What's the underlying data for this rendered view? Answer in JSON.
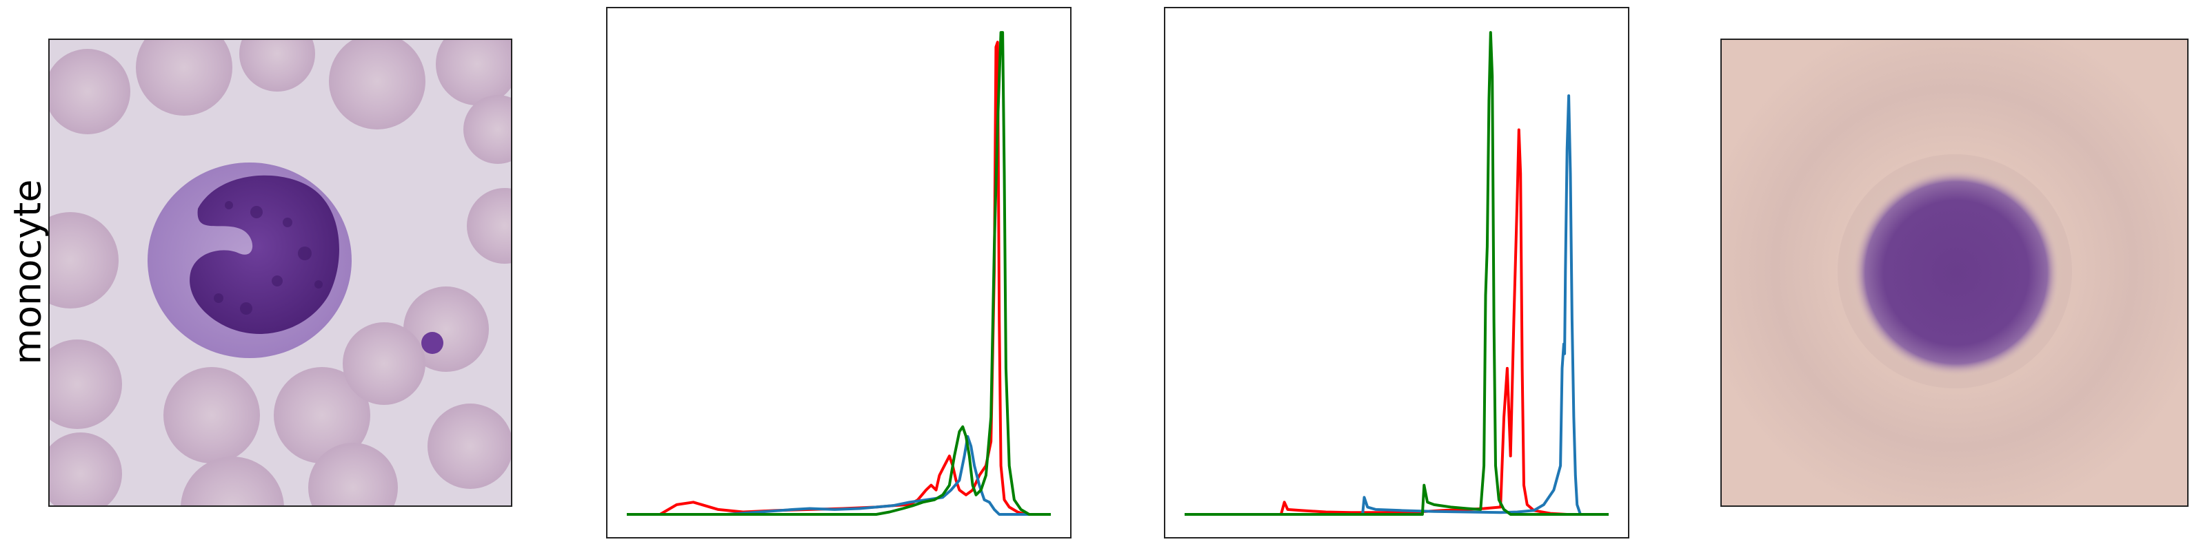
{
  "row_label": "monocyte",
  "images": {
    "micrograph": {
      "icon": "blood-smear-monocyte-image",
      "background": "#dcd4e0",
      "cell_color": "#5a2d87"
    },
    "mean_image": {
      "icon": "mean-cell-image",
      "background": "#e3c6bd",
      "blob_color": "#6a3e8a"
    }
  },
  "colors": {
    "red": "#ff0000",
    "green": "#008000",
    "blue": "#1f77b4"
  },
  "chart_data": [
    {
      "type": "line",
      "xlabel": "",
      "ylabel": "",
      "xlim": [
        0,
        255
      ],
      "ylim": [
        0,
        1
      ],
      "axis_ticks": false,
      "series": [
        {
          "color": "#ff0000",
          "points": [
            [
              0,
              0
            ],
            [
              20,
              0
            ],
            [
              30,
              0.02
            ],
            [
              40,
              0.025
            ],
            [
              55,
              0.01
            ],
            [
              70,
              0.005
            ],
            [
              90,
              0.008
            ],
            [
              110,
              0.01
            ],
            [
              130,
              0.012
            ],
            [
              150,
              0.015
            ],
            [
              160,
              0.018
            ],
            [
              170,
              0.02
            ],
            [
              175,
              0.03
            ],
            [
              180,
              0.05
            ],
            [
              183,
              0.06
            ],
            [
              186,
              0.05
            ],
            [
              188,
              0.08
            ],
            [
              191,
              0.1
            ],
            [
              194,
              0.12
            ],
            [
              196,
              0.1
            ],
            [
              198,
              0.07
            ],
            [
              200,
              0.05
            ],
            [
              204,
              0.04
            ],
            [
              208,
              0.05
            ],
            [
              212,
              0.08
            ],
            [
              216,
              0.1
            ],
            [
              219,
              0.15
            ],
            [
              221,
              0.5
            ],
            [
              222,
              0.96
            ],
            [
              223,
              0.97
            ],
            [
              224,
              0.4
            ],
            [
              225,
              0.1
            ],
            [
              227,
              0.03
            ],
            [
              230,
              0.015
            ],
            [
              235,
              0.005
            ],
            [
              240,
              0
            ],
            [
              255,
              0
            ]
          ]
        },
        {
          "color": "#1f77b4",
          "points": [
            [
              0,
              0
            ],
            [
              60,
              0
            ],
            [
              80,
              0.005
            ],
            [
              100,
              0.01
            ],
            [
              110,
              0.012
            ],
            [
              125,
              0.01
            ],
            [
              140,
              0.012
            ],
            [
              150,
              0.015
            ],
            [
              160,
              0.018
            ],
            [
              170,
              0.025
            ],
            [
              180,
              0.03
            ],
            [
              190,
              0.035
            ],
            [
              195,
              0.05
            ],
            [
              200,
              0.07
            ],
            [
              203,
              0.12
            ],
            [
              205,
              0.16
            ],
            [
              207,
              0.14
            ],
            [
              209,
              0.1
            ],
            [
              212,
              0.06
            ],
            [
              215,
              0.03
            ],
            [
              218,
              0.025
            ],
            [
              221,
              0.01
            ],
            [
              224,
              0
            ],
            [
              255,
              0
            ]
          ]
        },
        {
          "color": "#008000",
          "points": [
            [
              0,
              0
            ],
            [
              150,
              0
            ],
            [
              158,
              0.005
            ],
            [
              166,
              0.012
            ],
            [
              172,
              0.018
            ],
            [
              178,
              0.025
            ],
            [
              185,
              0.03
            ],
            [
              190,
              0.04
            ],
            [
              194,
              0.06
            ],
            [
              197,
              0.12
            ],
            [
              200,
              0.17
            ],
            [
              202,
              0.18
            ],
            [
              204,
              0.16
            ],
            [
              206,
              0.12
            ],
            [
              208,
              0.06
            ],
            [
              210,
              0.04
            ],
            [
              213,
              0.05
            ],
            [
              216,
              0.08
            ],
            [
              219,
              0.2
            ],
            [
              221,
              0.55
            ],
            [
              223,
              0.8
            ],
            [
              225,
              0.99
            ],
            [
              226,
              0.99
            ],
            [
              227,
              0.7
            ],
            [
              228,
              0.3
            ],
            [
              230,
              0.1
            ],
            [
              233,
              0.03
            ],
            [
              237,
              0.01
            ],
            [
              242,
              0
            ],
            [
              255,
              0
            ]
          ]
        }
      ]
    },
    {
      "type": "line",
      "xlabel": "",
      "ylabel": "",
      "xlim": [
        0,
        255
      ],
      "ylim": [
        0,
        1
      ],
      "axis_ticks": false,
      "series": [
        {
          "color": "#ff0000",
          "points": [
            [
              0,
              0
            ],
            [
              58,
              0
            ],
            [
              60,
              0.025
            ],
            [
              62,
              0.01
            ],
            [
              70,
              0.008
            ],
            [
              85,
              0.005
            ],
            [
              100,
              0.004
            ],
            [
              120,
              0.004
            ],
            [
              140,
              0.005
            ],
            [
              155,
              0.008
            ],
            [
              170,
              0.01
            ],
            [
              180,
              0.012
            ],
            [
              190,
              0.015
            ],
            [
              192,
              0.2
            ],
            [
              194,
              0.3
            ],
            [
              196,
              0.12
            ],
            [
              198,
              0.4
            ],
            [
              200,
              0.65
            ],
            [
              201,
              0.79
            ],
            [
              202,
              0.7
            ],
            [
              203,
              0.3
            ],
            [
              204,
              0.06
            ],
            [
              206,
              0.02
            ],
            [
              210,
              0.008
            ],
            [
              220,
              0.002
            ],
            [
              230,
              0
            ],
            [
              255,
              0
            ]
          ]
        },
        {
          "color": "#1f77b4",
          "points": [
            [
              0,
              0
            ],
            [
              107,
              0
            ],
            [
              108,
              0.035
            ],
            [
              110,
              0.015
            ],
            [
              115,
              0.01
            ],
            [
              130,
              0.008
            ],
            [
              150,
              0.006
            ],
            [
              170,
              0.005
            ],
            [
              190,
              0.004
            ],
            [
              200,
              0.005
            ],
            [
              210,
              0.008
            ],
            [
              216,
              0.02
            ],
            [
              222,
              0.05
            ],
            [
              226,
              0.1
            ],
            [
              227,
              0.3
            ],
            [
              228,
              0.35
            ],
            [
              228.5,
              0.33
            ],
            [
              229,
              0.5
            ],
            [
              230,
              0.75
            ],
            [
              231,
              0.86
            ],
            [
              232,
              0.7
            ],
            [
              233,
              0.4
            ],
            [
              234,
              0.2
            ],
            [
              235,
              0.08
            ],
            [
              236,
              0.02
            ],
            [
              238,
              0
            ],
            [
              255,
              0
            ]
          ]
        },
        {
          "color": "#008000",
          "points": [
            [
              0,
              0
            ],
            [
              143,
              0
            ],
            [
              144,
              0.06
            ],
            [
              146,
              0.025
            ],
            [
              150,
              0.02
            ],
            [
              160,
              0.015
            ],
            [
              170,
              0.012
            ],
            [
              178,
              0.01
            ],
            [
              180,
              0.1
            ],
            [
              181,
              0.45
            ],
            [
              182,
              0.55
            ],
            [
              183,
              0.85
            ],
            [
              184,
              0.99
            ],
            [
              185,
              0.9
            ],
            [
              186,
              0.4
            ],
            [
              187,
              0.1
            ],
            [
              189,
              0.03
            ],
            [
              192,
              0.01
            ],
            [
              196,
              0
            ],
            [
              255,
              0
            ]
          ]
        }
      ]
    }
  ]
}
